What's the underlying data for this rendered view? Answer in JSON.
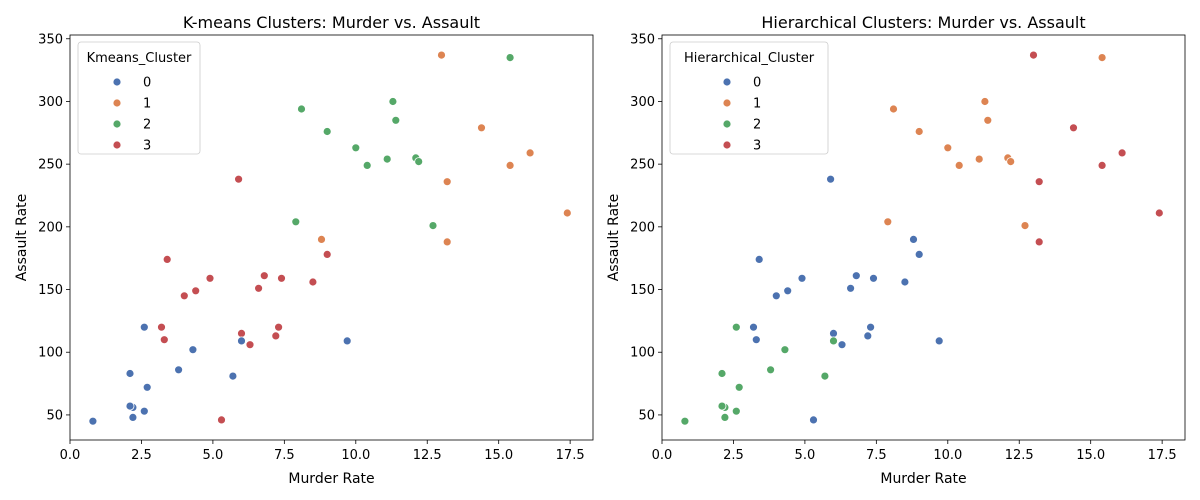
{
  "chart_data": [
    {
      "type": "scatter",
      "title": "K-means Clusters: Murder vs. Assault",
      "xlabel": "Murder Rate",
      "ylabel": "Assault Rate",
      "xlim": [
        0,
        18.3
      ],
      "ylim": [
        30,
        353
      ],
      "xticks": [
        "0.0",
        "2.5",
        "5.0",
        "7.5",
        "10.0",
        "12.5",
        "15.0",
        "17.5"
      ],
      "yticks": [
        "50",
        "100",
        "150",
        "200",
        "250",
        "300",
        "350"
      ],
      "grid": false,
      "legend": {
        "title": "Kmeans_Cluster",
        "position": "top-left",
        "entries": [
          "0",
          "1",
          "2",
          "3"
        ]
      },
      "colors": [
        "#4C72B0",
        "#DD8452",
        "#55A868",
        "#C44E52"
      ],
      "points": [
        {
          "x": 13.2,
          "y": 236,
          "c": 1
        },
        {
          "x": 10.0,
          "y": 263,
          "c": 2
        },
        {
          "x": 8.1,
          "y": 294,
          "c": 2
        },
        {
          "x": 8.8,
          "y": 190,
          "c": 1
        },
        {
          "x": 9.0,
          "y": 276,
          "c": 2
        },
        {
          "x": 7.9,
          "y": 204,
          "c": 2
        },
        {
          "x": 3.3,
          "y": 110,
          "c": 3
        },
        {
          "x": 5.9,
          "y": 238,
          "c": 3
        },
        {
          "x": 15.4,
          "y": 335,
          "c": 2
        },
        {
          "x": 17.4,
          "y": 211,
          "c": 1
        },
        {
          "x": 5.3,
          "y": 46,
          "c": 3
        },
        {
          "x": 2.6,
          "y": 120,
          "c": 0
        },
        {
          "x": 10.4,
          "y": 249,
          "c": 2
        },
        {
          "x": 7.2,
          "y": 113,
          "c": 3
        },
        {
          "x": 2.2,
          "y": 56,
          "c": 0
        },
        {
          "x": 6.0,
          "y": 115,
          "c": 3
        },
        {
          "x": 9.7,
          "y": 109,
          "c": 0
        },
        {
          "x": 15.4,
          "y": 249,
          "c": 1
        },
        {
          "x": 2.1,
          "y": 83,
          "c": 0
        },
        {
          "x": 11.3,
          "y": 300,
          "c": 2
        },
        {
          "x": 4.4,
          "y": 149,
          "c": 3
        },
        {
          "x": 12.1,
          "y": 255,
          "c": 2
        },
        {
          "x": 2.7,
          "y": 72,
          "c": 0
        },
        {
          "x": 16.1,
          "y": 259,
          "c": 1
        },
        {
          "x": 9.0,
          "y": 178,
          "c": 3
        },
        {
          "x": 6.0,
          "y": 109,
          "c": 0
        },
        {
          "x": 4.3,
          "y": 102,
          "c": 0
        },
        {
          "x": 12.2,
          "y": 252,
          "c": 2
        },
        {
          "x": 2.1,
          "y": 57,
          "c": 0
        },
        {
          "x": 7.4,
          "y": 159,
          "c": 3
        },
        {
          "x": 11.4,
          "y": 285,
          "c": 2
        },
        {
          "x": 11.1,
          "y": 254,
          "c": 2
        },
        {
          "x": 13.0,
          "y": 337,
          "c": 1
        },
        {
          "x": 0.8,
          "y": 45,
          "c": 0
        },
        {
          "x": 7.3,
          "y": 120,
          "c": 3
        },
        {
          "x": 6.6,
          "y": 151,
          "c": 3
        },
        {
          "x": 4.9,
          "y": 159,
          "c": 3
        },
        {
          "x": 6.3,
          "y": 106,
          "c": 3
        },
        {
          "x": 3.4,
          "y": 174,
          "c": 3
        },
        {
          "x": 14.4,
          "y": 279,
          "c": 1
        },
        {
          "x": 3.8,
          "y": 86,
          "c": 0
        },
        {
          "x": 13.2,
          "y": 188,
          "c": 1
        },
        {
          "x": 12.7,
          "y": 201,
          "c": 2
        },
        {
          "x": 3.2,
          "y": 120,
          "c": 3
        },
        {
          "x": 2.2,
          "y": 48,
          "c": 0
        },
        {
          "x": 8.5,
          "y": 156,
          "c": 3
        },
        {
          "x": 4.0,
          "y": 145,
          "c": 3
        },
        {
          "x": 5.7,
          "y": 81,
          "c": 0
        },
        {
          "x": 2.6,
          "y": 53,
          "c": 0
        },
        {
          "x": 6.8,
          "y": 161,
          "c": 3
        }
      ]
    },
    {
      "type": "scatter",
      "title": "Hierarchical Clusters: Murder vs. Assault",
      "xlabel": "Murder Rate",
      "ylabel": "Assault Rate",
      "xlim": [
        0,
        18.3
      ],
      "ylim": [
        30,
        353
      ],
      "xticks": [
        "0.0",
        "2.5",
        "5.0",
        "7.5",
        "10.0",
        "12.5",
        "15.0",
        "17.5"
      ],
      "yticks": [
        "50",
        "100",
        "150",
        "200",
        "250",
        "300",
        "350"
      ],
      "grid": false,
      "legend": {
        "title": "Hierarchical_Cluster",
        "position": "top-left",
        "entries": [
          "0",
          "1",
          "2",
          "3"
        ]
      },
      "colors": [
        "#4C72B0",
        "#DD8452",
        "#55A868",
        "#C44E52"
      ],
      "points": [
        {
          "x": 13.2,
          "y": 236,
          "c": 3
        },
        {
          "x": 10.0,
          "y": 263,
          "c": 1
        },
        {
          "x": 8.1,
          "y": 294,
          "c": 1
        },
        {
          "x": 8.8,
          "y": 190,
          "c": 0
        },
        {
          "x": 9.0,
          "y": 276,
          "c": 1
        },
        {
          "x": 7.9,
          "y": 204,
          "c": 1
        },
        {
          "x": 3.3,
          "y": 110,
          "c": 0
        },
        {
          "x": 5.9,
          "y": 238,
          "c": 0
        },
        {
          "x": 15.4,
          "y": 335,
          "c": 1
        },
        {
          "x": 17.4,
          "y": 211,
          "c": 3
        },
        {
          "x": 5.3,
          "y": 46,
          "c": 0
        },
        {
          "x": 2.6,
          "y": 120,
          "c": 2
        },
        {
          "x": 10.4,
          "y": 249,
          "c": 1
        },
        {
          "x": 7.2,
          "y": 113,
          "c": 0
        },
        {
          "x": 2.2,
          "y": 56,
          "c": 2
        },
        {
          "x": 6.0,
          "y": 115,
          "c": 0
        },
        {
          "x": 9.7,
          "y": 109,
          "c": 0
        },
        {
          "x": 15.4,
          "y": 249,
          "c": 3
        },
        {
          "x": 2.1,
          "y": 83,
          "c": 2
        },
        {
          "x": 11.3,
          "y": 300,
          "c": 1
        },
        {
          "x": 4.4,
          "y": 149,
          "c": 0
        },
        {
          "x": 12.1,
          "y": 255,
          "c": 1
        },
        {
          "x": 2.7,
          "y": 72,
          "c": 2
        },
        {
          "x": 16.1,
          "y": 259,
          "c": 3
        },
        {
          "x": 9.0,
          "y": 178,
          "c": 0
        },
        {
          "x": 6.0,
          "y": 109,
          "c": 2
        },
        {
          "x": 4.3,
          "y": 102,
          "c": 2
        },
        {
          "x": 12.2,
          "y": 252,
          "c": 1
        },
        {
          "x": 2.1,
          "y": 57,
          "c": 2
        },
        {
          "x": 7.4,
          "y": 159,
          "c": 0
        },
        {
          "x": 11.4,
          "y": 285,
          "c": 1
        },
        {
          "x": 11.1,
          "y": 254,
          "c": 1
        },
        {
          "x": 13.0,
          "y": 337,
          "c": 3
        },
        {
          "x": 0.8,
          "y": 45,
          "c": 2
        },
        {
          "x": 7.3,
          "y": 120,
          "c": 0
        },
        {
          "x": 6.6,
          "y": 151,
          "c": 0
        },
        {
          "x": 4.9,
          "y": 159,
          "c": 0
        },
        {
          "x": 6.3,
          "y": 106,
          "c": 0
        },
        {
          "x": 3.4,
          "y": 174,
          "c": 0
        },
        {
          "x": 14.4,
          "y": 279,
          "c": 3
        },
        {
          "x": 3.8,
          "y": 86,
          "c": 2
        },
        {
          "x": 13.2,
          "y": 188,
          "c": 3
        },
        {
          "x": 12.7,
          "y": 201,
          "c": 1
        },
        {
          "x": 3.2,
          "y": 120,
          "c": 0
        },
        {
          "x": 2.2,
          "y": 48,
          "c": 2
        },
        {
          "x": 8.5,
          "y": 156,
          "c": 0
        },
        {
          "x": 4.0,
          "y": 145,
          "c": 0
        },
        {
          "x": 5.7,
          "y": 81,
          "c": 2
        },
        {
          "x": 2.6,
          "y": 53,
          "c": 2
        },
        {
          "x": 6.8,
          "y": 161,
          "c": 0
        }
      ]
    }
  ]
}
